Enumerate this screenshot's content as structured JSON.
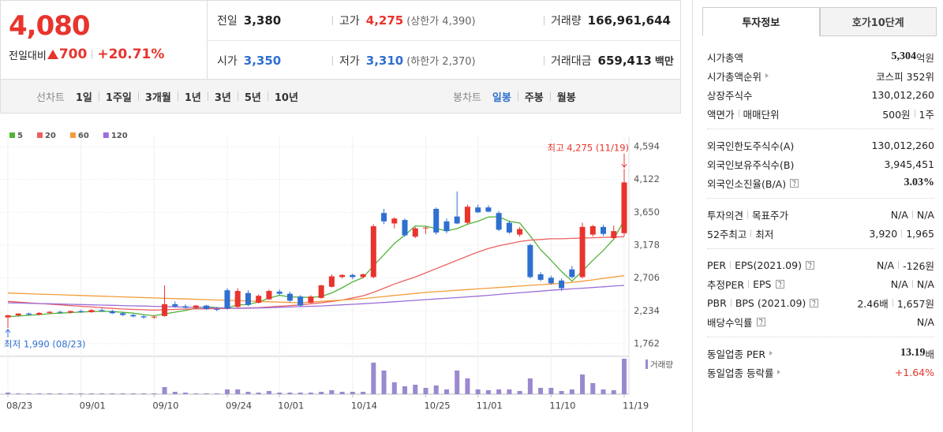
{
  "quote": {
    "price": "4,080",
    "change_label": "전일대비",
    "change": "700",
    "change_rate": "+20.71%",
    "color": "#e8342d"
  },
  "summary": [
    [
      {
        "label": "전일",
        "value": "3,380",
        "color": "#222"
      },
      {
        "label": "고가",
        "value": "4,275",
        "note": "(상한가 4,390)",
        "color": "#e8342d"
      },
      {
        "label": "거래량",
        "value": "166,961,644",
        "color": "#222"
      }
    ],
    [
      {
        "label": "시가",
        "value": "3,350",
        "color": "#2f6fd0"
      },
      {
        "label": "저가",
        "value": "3,310",
        "note": "(하한가 2,370)",
        "color": "#2f6fd0"
      },
      {
        "label": "거래대금",
        "value": "659,413",
        "unit": "백만",
        "color": "#222"
      }
    ]
  ],
  "toolbar": {
    "line_chart": {
      "label": "선차트",
      "options": [
        "1일",
        "1주일",
        "3개월",
        "1년",
        "3년",
        "5년",
        "10년"
      ]
    },
    "candle_chart": {
      "label": "봉차트",
      "options": [
        "일봉",
        "주봉",
        "월봉"
      ]
    }
  },
  "chart_data": {
    "type": "candlestick",
    "categories": [
      "08/23",
      null,
      null,
      null,
      null,
      null,
      null,
      "09/01",
      null,
      null,
      null,
      null,
      null,
      null,
      "09/10",
      null,
      null,
      null,
      null,
      null,
      null,
      "09/24",
      null,
      null,
      null,
      null,
      "10/01",
      null,
      null,
      null,
      null,
      null,
      null,
      "10/14",
      null,
      null,
      null,
      null,
      null,
      null,
      "10/25",
      null,
      null,
      null,
      null,
      "11/01",
      null,
      null,
      null,
      null,
      null,
      null,
      "11/10",
      null,
      null,
      null,
      null,
      null,
      null,
      "11/19"
    ],
    "open": [
      2140,
      2170,
      2195,
      2180,
      2205,
      2220,
      2210,
      2230,
      2215,
      2245,
      2230,
      2200,
      2175,
      2155,
      2140,
      2160,
      2330,
      2300,
      2280,
      2310,
      2260,
      2530,
      2290,
      2490,
      2350,
      2400,
      2510,
      2480,
      2440,
      2350,
      2420,
      2580,
      2720,
      2750,
      2720,
      2720,
      3640,
      3490,
      3540,
      3300,
      3420,
      3700,
      3520,
      3590,
      3500,
      3720,
      3720,
      3640,
      3500,
      3330,
      3180,
      2760,
      2710,
      2670,
      2830,
      2720,
      3330,
      3440,
      3280,
      3350
    ],
    "high": [
      2180,
      2200,
      2210,
      2215,
      2230,
      2235,
      2240,
      2250,
      2260,
      2270,
      2250,
      2215,
      2190,
      2175,
      2170,
      2600,
      2370,
      2330,
      2320,
      2320,
      2290,
      2560,
      2560,
      2530,
      2470,
      2540,
      2540,
      2510,
      2460,
      2460,
      2610,
      2760,
      2760,
      2770,
      2770,
      3480,
      3700,
      3580,
      3560,
      3440,
      3450,
      3720,
      3560,
      3950,
      3760,
      3760,
      3750,
      3670,
      3530,
      3440,
      3200,
      2790,
      2740,
      2700,
      2880,
      3500,
      3470,
      3470,
      3460,
      4275
    ],
    "low": [
      1990,
      2150,
      2170,
      2170,
      2185,
      2195,
      2195,
      2205,
      2205,
      2220,
      2190,
      2160,
      2140,
      2120,
      2120,
      2150,
      2280,
      2270,
      2260,
      2250,
      2230,
      2250,
      2280,
      2300,
      2340,
      2390,
      2460,
      2360,
      2290,
      2340,
      2410,
      2570,
      2700,
      2690,
      2700,
      2700,
      3480,
      3420,
      3300,
      3280,
      3340,
      3330,
      3350,
      3480,
      3480,
      3640,
      3650,
      3380,
      3340,
      3300,
      2700,
      2660,
      2610,
      2520,
      2700,
      2700,
      3300,
      3310,
      3260,
      3310
    ],
    "close": [
      2170,
      2195,
      2180,
      2205,
      2220,
      2210,
      2230,
      2215,
      2245,
      2230,
      2200,
      2175,
      2155,
      2140,
      2150,
      2330,
      2300,
      2280,
      2310,
      2260,
      2250,
      2270,
      2520,
      2320,
      2450,
      2520,
      2480,
      2380,
      2310,
      2440,
      2600,
      2730,
      2750,
      2720,
      2760,
      3450,
      3520,
      3560,
      3320,
      3420,
      3430,
      3360,
      3380,
      3490,
      3730,
      3650,
      3660,
      3400,
      3360,
      3410,
      2720,
      2680,
      2630,
      2560,
      2720,
      3440,
      3450,
      3340,
      3380,
      4080
    ],
    "up_color": "#e8342d",
    "down_color": "#2f6fd0",
    "moving_averages": [
      {
        "name": "5",
        "color": "#52b43a",
        "values": [
          2150,
          2160,
          2170,
          2180,
          2194,
          2202,
          2209,
          2216,
          2224,
          2226,
          2224,
          2213,
          2201,
          2180,
          2164,
          2190,
          2215,
          2240,
          2274,
          2296,
          2280,
          2274,
          2322,
          2324,
          2362,
          2416,
          2458,
          2434,
          2432,
          2426,
          2442,
          2492,
          2566,
          2650,
          2712,
          2882,
          3040,
          3202,
          3322,
          3454,
          3450,
          3418,
          3382,
          3416,
          3478,
          3522,
          3582,
          3586,
          3520,
          3496,
          3310,
          3114,
          2960,
          2800,
          2662,
          2806,
          2960,
          3102,
          3266,
          3538
        ]
      },
      {
        "name": "20",
        "color": "#ec5f5f",
        "values": [
          2370,
          2360,
          2350,
          2340,
          2330,
          2320,
          2310,
          2300,
          2290,
          2280,
          2270,
          2260,
          2255,
          2250,
          2245,
          2250,
          2255,
          2260,
          2262,
          2264,
          2266,
          2268,
          2272,
          2276,
          2280,
          2290,
          2300,
          2310,
          2320,
          2335,
          2350,
          2370,
          2390,
          2420,
          2450,
          2500,
          2560,
          2620,
          2670,
          2720,
          2780,
          2840,
          2900,
          2960,
          3020,
          3080,
          3130,
          3170,
          3200,
          3230,
          3250,
          3260,
          3270,
          3270,
          3275,
          3280,
          3285,
          3290,
          3295,
          3300
        ]
      },
      {
        "name": "60",
        "color": "#f39c3b",
        "values": [
          2490,
          2485,
          2480,
          2475,
          2470,
          2465,
          2460,
          2455,
          2450,
          2445,
          2440,
          2435,
          2430,
          2425,
          2420,
          2415,
          2410,
          2405,
          2400,
          2395,
          2390,
          2385,
          2380,
          2375,
          2370,
          2365,
          2360,
          2355,
          2350,
          2360,
          2370,
          2380,
          2390,
          2400,
          2410,
          2425,
          2440,
          2455,
          2470,
          2485,
          2500,
          2510,
          2520,
          2530,
          2540,
          2550,
          2560,
          2570,
          2580,
          2590,
          2600,
          2610,
          2620,
          2630,
          2645,
          2660,
          2680,
          2700,
          2720,
          2740
        ]
      },
      {
        "name": "120",
        "color": "#9b6fd8",
        "values": [
          2350,
          2346,
          2343,
          2339,
          2336,
          2332,
          2328,
          2325,
          2321,
          2317,
          2314,
          2310,
          2306,
          2303,
          2299,
          2295,
          2292,
          2288,
          2284,
          2281,
          2277,
          2273,
          2270,
          2272,
          2275,
          2280,
          2285,
          2290,
          2295,
          2300,
          2305,
          2312,
          2320,
          2328,
          2336,
          2345,
          2355,
          2365,
          2375,
          2385,
          2395,
          2405,
          2415,
          2425,
          2435,
          2445,
          2458,
          2470,
          2482,
          2494,
          2506,
          2518,
          2530,
          2540,
          2550,
          2560,
          2570,
          2580,
          2590,
          2600
        ]
      }
    ],
    "volume": {
      "label": "거래량",
      "color": "#9b89d0",
      "values": [
        7420000,
        3710000,
        3710000,
        3710000,
        3710000,
        3710000,
        3710000,
        3710000,
        3710000,
        3710000,
        3710000,
        3710000,
        3710000,
        3710000,
        3710000,
        33390000,
        11130000,
        7420000,
        3710000,
        3710000,
        3710000,
        22260000,
        22260000,
        11130000,
        7420000,
        14840000,
        7420000,
        7420000,
        7420000,
        7420000,
        11130000,
        18550000,
        11130000,
        11130000,
        11130000,
        148400000,
        111300000,
        55650000,
        37100000,
        44520000,
        29680000,
        40810000,
        22260000,
        111300000,
        74200000,
        22260000,
        18550000,
        22260000,
        22260000,
        14840000,
        74200000,
        29680000,
        29680000,
        14840000,
        22260000,
        92750000,
        51940000,
        22260000,
        18550000,
        166961644
      ]
    },
    "ylim": [
      1762,
      4594
    ],
    "yticks": [
      {
        "value": 4594,
        "label": "4,594"
      },
      {
        "value": 4122,
        "label": "4,122"
      },
      {
        "value": 3650,
        "label": "3,650"
      },
      {
        "value": 3178,
        "label": "3,178"
      },
      {
        "value": 2706,
        "label": "2,706"
      },
      {
        "value": 2234,
        "label": "2,234"
      },
      {
        "value": 1762,
        "label": "1,762"
      }
    ],
    "grid": true,
    "annotations": {
      "high": {
        "text": "최고 4,275 (11/19)",
        "color": "#e8342d"
      },
      "low": {
        "text": "최저 1,990 (08/23)",
        "color": "#2f6fd0"
      }
    }
  },
  "invest_panel": {
    "tabs": [
      "투자정보",
      "호가10단계"
    ],
    "sections": [
      [
        {
          "label": [
            "시가총액"
          ],
          "value": [
            "5,304"
          ],
          "unit": "억원",
          "bold": true
        },
        {
          "label": [
            "시가총액순위"
          ],
          "arrow": true,
          "value": [
            "코스피 352위"
          ]
        },
        {
          "label": [
            "상장주식수"
          ],
          "value": [
            "130,012,260"
          ]
        },
        {
          "label": [
            "액면가",
            "매매단위"
          ],
          "value": [
            "500원",
            "1주"
          ]
        }
      ],
      [
        {
          "label": [
            "외국인한도주식수(A)"
          ],
          "value": [
            "130,012,260"
          ]
        },
        {
          "label": [
            "외국인보유주식수(B)"
          ],
          "value": [
            "3,945,451"
          ]
        },
        {
          "label": [
            "외국인소진율(B/A)"
          ],
          "help": true,
          "value": [
            "3.03%"
          ],
          "bold": true
        }
      ],
      [
        {
          "label": [
            "투자의견",
            "목표주가"
          ],
          "value": [
            "N/A",
            "N/A"
          ]
        },
        {
          "label": [
            "52주최고",
            "최저"
          ],
          "value": [
            "3,920",
            "1,965"
          ]
        }
      ],
      [
        {
          "label": [
            "PER",
            "EPS(2021.09)"
          ],
          "help": true,
          "value": [
            "N/A",
            "-126원"
          ]
        },
        {
          "label": [
            "추정PER",
            "EPS"
          ],
          "help": true,
          "value": [
            "N/A",
            "N/A"
          ]
        },
        {
          "label": [
            "PBR",
            "BPS (2021.09)"
          ],
          "help": true,
          "value": [
            "2.46배",
            "1,657원"
          ]
        },
        {
          "label": [
            "배당수익률"
          ],
          "help": true,
          "value": [
            "N/A"
          ]
        }
      ],
      [
        {
          "label": [
            "동일업종 PER"
          ],
          "arrow": true,
          "value": [
            "13.19"
          ],
          "unit": "배",
          "bold": true
        },
        {
          "label": [
            "동일업종 등락률"
          ],
          "arrow": true,
          "value": [
            "+1.64%"
          ],
          "color": "#e8342d"
        }
      ]
    ]
  }
}
